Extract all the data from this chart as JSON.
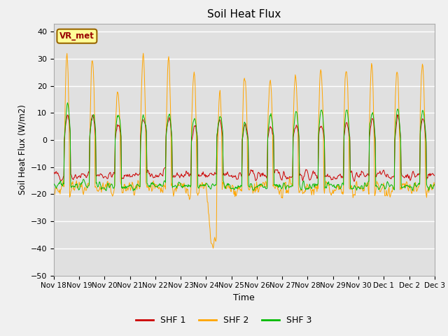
{
  "title": "Soil Heat Flux",
  "ylabel": "Soil Heat Flux (W/m2)",
  "xlabel": "Time",
  "ylim": [
    -50,
    43
  ],
  "yticks": [
    -50,
    -40,
    -30,
    -20,
    -10,
    0,
    10,
    20,
    30,
    40
  ],
  "background_color": "#f0f0f0",
  "plot_bg_color": "#e0e0e0",
  "shf1_color": "#cc0000",
  "shf2_color": "#ffa500",
  "shf3_color": "#00bb00",
  "annotation_text": "VR_met",
  "annotation_bg": "#ffff99",
  "annotation_border": "#996600",
  "legend_entries": [
    "SHF 1",
    "SHF 2",
    "SHF 3"
  ],
  "n_days": 15,
  "seed": 42
}
